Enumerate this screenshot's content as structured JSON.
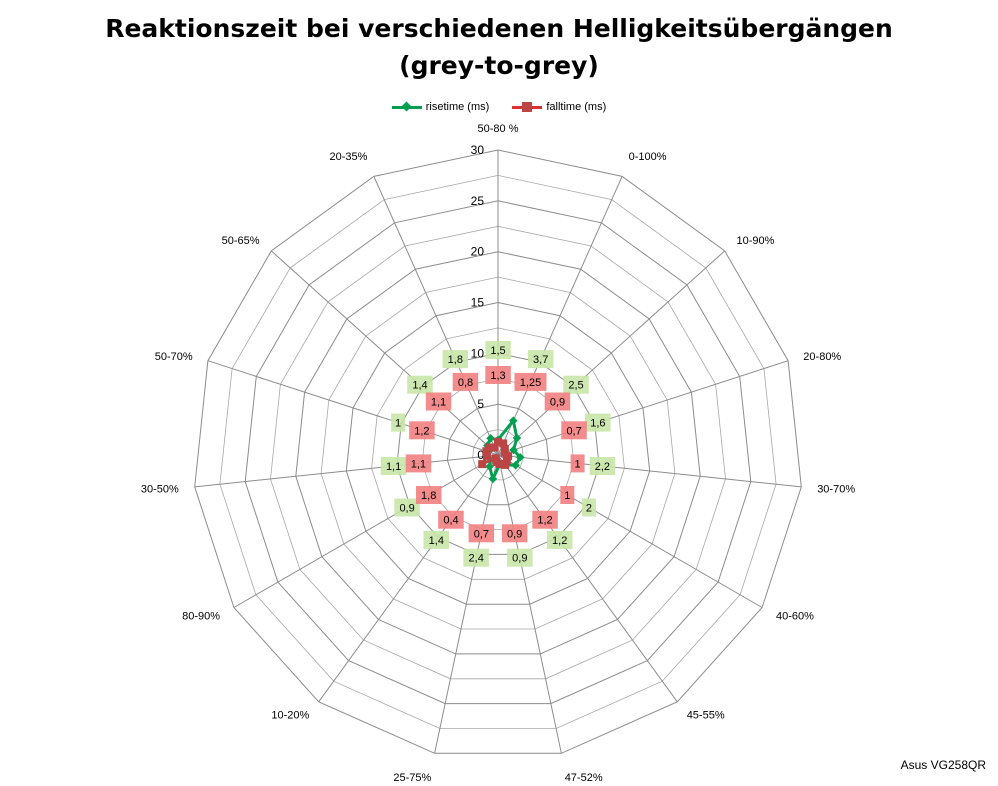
{
  "chart_data": {
    "type": "radar",
    "title_lines": [
      "Reaktionszeit bei verschiedenen Helligkeitsübergängen",
      "(grey-to-grey)"
    ],
    "categories": [
      "50-80 %",
      "0-100%",
      "10-90%",
      "20-80%",
      "30-70%",
      "40-60%",
      "45-55%",
      "47-52%",
      "25-75%",
      "10-20%",
      "80-90%",
      "30-50%",
      "50-70%",
      "50-65%",
      "20-35%"
    ],
    "r_range": [
      0,
      30
    ],
    "r_ticks": [
      0,
      5,
      10,
      15,
      20,
      25,
      30
    ],
    "r_tick_labels": [
      "0",
      "5",
      "10",
      "15",
      "20",
      "25",
      "30"
    ],
    "grid": true,
    "legend_position": "top",
    "series": [
      {
        "name": "risetime (ms)",
        "color": "#00a050",
        "marker": "diamond",
        "label_bg": "#c9e6a8",
        "values": [
          1.5,
          3.7,
          2.5,
          1.6,
          2.2,
          2,
          1.2,
          0.9,
          2.4,
          1.4,
          0.9,
          1.1,
          1,
          1.4,
          1.8
        ],
        "labels": [
          "1,5",
          "3,7",
          "2,5",
          "1,6",
          "2,2",
          "2",
          "1,2",
          "0,9",
          "2,4",
          "1,4",
          "0,9",
          "1,1",
          "1",
          "1,4",
          "1,8"
        ]
      },
      {
        "name": "falltime (ms)",
        "color": "#bb4444",
        "marker": "square",
        "label_bg": "#f28080",
        "values": [
          1.3,
          1.25,
          0.9,
          0.7,
          1,
          1,
          1.2,
          0.9,
          0.7,
          0.4,
          1.8,
          1.1,
          1.2,
          1.1,
          0.8
        ],
        "labels": [
          "1,3",
          "1,25",
          "0,9",
          "0,7",
          "1",
          "1",
          "1,2",
          "0,9",
          "0,7",
          "0,4",
          "1,8",
          "1,1",
          "1,2",
          "1,1",
          "0,8"
        ]
      }
    ]
  },
  "footer": {
    "monitor": "Asus VG258QR"
  }
}
